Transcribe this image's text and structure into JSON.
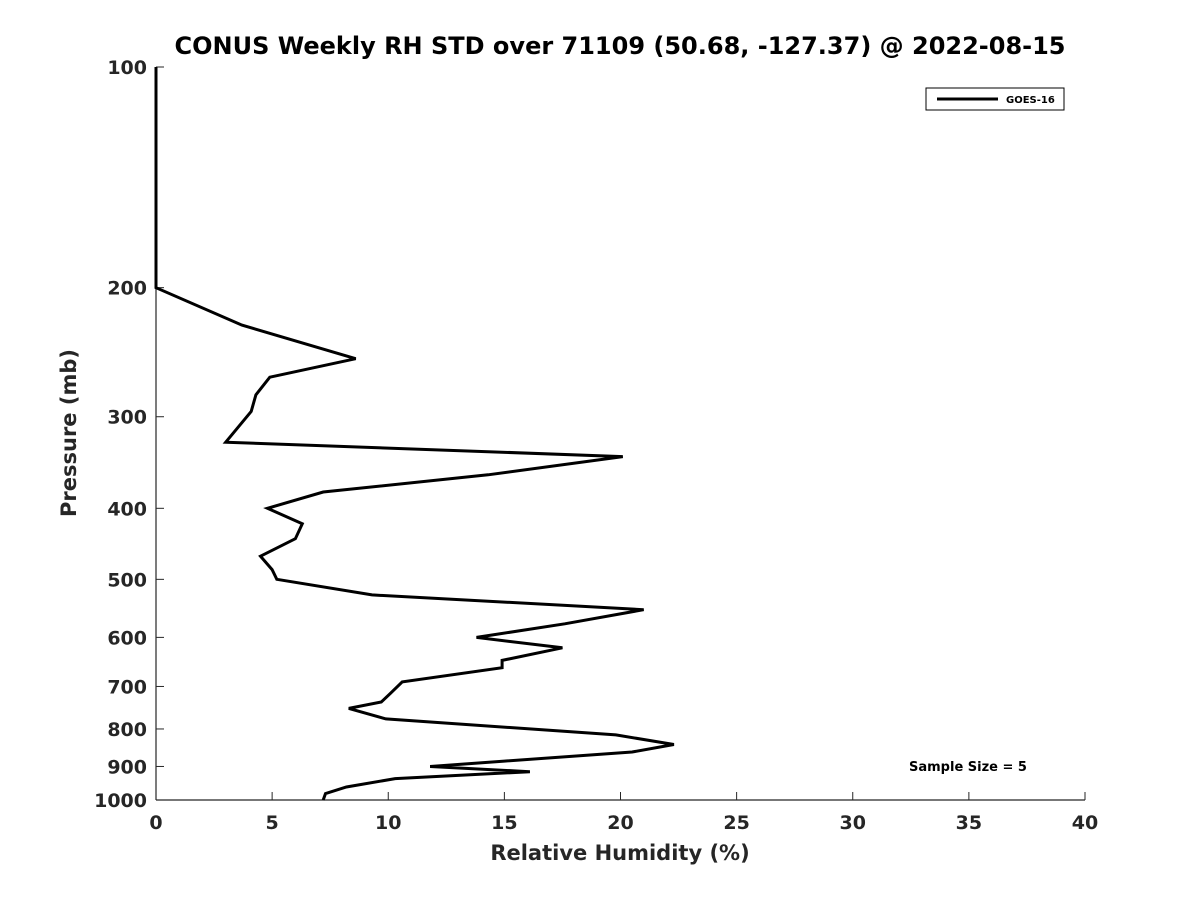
{
  "chart_data": {
    "type": "line",
    "title": "CONUS Weekly RH STD over 71109 (50.68, -127.37) @ 2022-08-15",
    "xlabel": "Relative Humidity (%)",
    "ylabel": "Pressure (mb)",
    "xlim": [
      0,
      40
    ],
    "ylim": [
      100,
      1000
    ],
    "yscale": "log",
    "y_reversed": true,
    "grid": false,
    "legend_position": "top-right",
    "xticks": [
      0,
      5,
      10,
      15,
      20,
      25,
      30,
      35,
      40
    ],
    "yticks": [
      100,
      200,
      300,
      400,
      500,
      600,
      700,
      800,
      900,
      1000
    ],
    "series": [
      {
        "name": "GOES-16",
        "color": "#000000",
        "x": [
          0,
          0,
          0,
          0,
          0,
          3.7,
          8.6,
          4.9,
          4.3,
          4.1,
          3.0,
          20.1,
          14.3,
          7.2,
          4.8,
          6.3,
          6.0,
          4.5,
          5.0,
          5.2,
          9.3,
          21.0,
          17.6,
          13.8,
          17.5,
          14.9,
          14.9,
          10.6,
          10.1,
          9.7,
          8.3,
          9.9,
          19.8,
          22.3,
          20.5,
          15.0,
          11.8,
          16.1,
          10.3,
          8.2,
          7.3,
          7.2
        ],
        "y": [
          100,
          125,
          150,
          175,
          200,
          225,
          250,
          265,
          280,
          295,
          325,
          340,
          360,
          380,
          400,
          420,
          440,
          465,
          485,
          500,
          525,
          550,
          575,
          600,
          620,
          645,
          660,
          690,
          715,
          735,
          750,
          775,
          815,
          840,
          860,
          885,
          900,
          915,
          935,
          960,
          980,
          1000
        ]
      }
    ],
    "annotations": [
      "Sample Size = 5"
    ]
  }
}
